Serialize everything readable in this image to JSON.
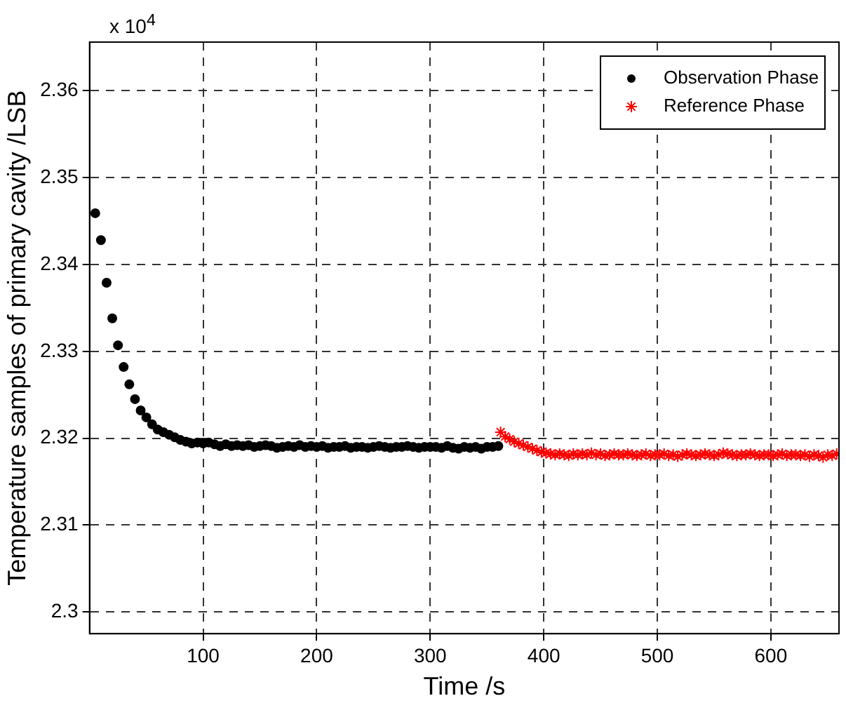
{
  "chart_data": {
    "type": "scatter",
    "xlabel": "Time /s",
    "ylabel": "Temperature samples of primary cavity /LSB",
    "annotations": [
      "x 10$^{4}$"
    ],
    "xlim": [
      0,
      660
    ],
    "xticks": [
      100,
      200,
      300,
      400,
      500,
      600
    ],
    "ylim": [
      2.2975,
      2.3656
    ],
    "yticks": [
      2.3,
      2.31,
      2.32,
      2.33,
      2.34,
      2.35,
      2.36
    ],
    "grid": true,
    "legend": "top right",
    "series": [
      {
        "name": "Observation Phase",
        "color": "#000000",
        "marker": "circle",
        "x": [
          5,
          10,
          15,
          20,
          25,
          30,
          35,
          40,
          45,
          50,
          55,
          60,
          65,
          70,
          75,
          80,
          85,
          90,
          95,
          100,
          105,
          110,
          115,
          120,
          125,
          130,
          135,
          140,
          145,
          150,
          155,
          160,
          165,
          170,
          175,
          180,
          185,
          190,
          195,
          200,
          205,
          210,
          215,
          220,
          225,
          230,
          235,
          240,
          245,
          250,
          255,
          260,
          265,
          270,
          275,
          280,
          285,
          290,
          295,
          300,
          305,
          310,
          315,
          320,
          325,
          330,
          335,
          340,
          345,
          350,
          355,
          360
        ],
        "values": [
          2.3459,
          2.3428,
          2.3379,
          2.3338,
          2.3307,
          2.3282,
          2.3262,
          2.3245,
          2.3232,
          2.3224,
          2.3216,
          2.321,
          2.3207,
          2.3204,
          2.3201,
          2.3198,
          2.3196,
          2.3194,
          2.3195,
          2.3194,
          2.3195,
          2.3193,
          2.3191,
          2.3193,
          2.3191,
          2.3192,
          2.3191,
          2.3192,
          2.319,
          2.3191,
          2.3192,
          2.3191,
          2.3189,
          2.319,
          2.3191,
          2.319,
          2.3192,
          2.319,
          2.3191,
          2.319,
          2.3191,
          2.3189,
          2.319,
          2.319,
          2.3191,
          2.3189,
          2.319,
          2.319,
          2.3189,
          2.319,
          2.3191,
          2.319,
          2.3189,
          2.319,
          2.319,
          2.3191,
          2.319,
          2.3189,
          2.319,
          2.319,
          2.319,
          2.3189,
          2.3191,
          2.3189,
          2.3188,
          2.319,
          2.3189,
          2.319,
          2.3188,
          2.319,
          2.319,
          2.3191
        ]
      },
      {
        "name": "Reference Phase",
        "color": "#ff0000",
        "marker": "cross",
        "x": [
          362,
          366,
          370,
          374,
          378,
          382,
          386,
          390,
          394,
          398,
          402,
          406,
          410,
          414,
          418,
          422,
          426,
          430,
          434,
          438,
          442,
          446,
          450,
          454,
          458,
          462,
          466,
          470,
          474,
          478,
          482,
          486,
          490,
          494,
          498,
          502,
          506,
          510,
          514,
          518,
          522,
          526,
          530,
          534,
          538,
          542,
          546,
          550,
          554,
          558,
          562,
          566,
          570,
          574,
          578,
          582,
          586,
          590,
          594,
          598,
          602,
          606,
          610,
          614,
          618,
          622,
          626,
          630,
          634,
          638,
          642,
          646,
          650,
          654,
          658
        ],
        "values": [
          2.3207,
          2.3202,
          2.3199,
          2.3196,
          2.3194,
          2.3192,
          2.319,
          2.3188,
          2.3186,
          2.3184,
          2.3183,
          2.3182,
          2.3181,
          2.3182,
          2.3181,
          2.318,
          2.3182,
          2.3181,
          2.3182,
          2.3181,
          2.3183,
          2.3181,
          2.3182,
          2.318,
          2.3181,
          2.3182,
          2.3181,
          2.3181,
          2.3182,
          2.3181,
          2.318,
          2.3181,
          2.3182,
          2.318,
          2.3181,
          2.3181,
          2.3182,
          2.318,
          2.3181,
          2.3179,
          2.3181,
          2.3182,
          2.3181,
          2.318,
          2.3181,
          2.3182,
          2.3181,
          2.318,
          2.3181,
          2.3183,
          2.3182,
          2.3181,
          2.318,
          2.3181,
          2.3181,
          2.3182,
          2.3181,
          2.318,
          2.3181,
          2.3181,
          2.318,
          2.3181,
          2.3182,
          2.318,
          2.3181,
          2.3181,
          2.318,
          2.3181,
          2.3179,
          2.3181,
          2.318,
          2.3178,
          2.3181,
          2.318,
          2.3182
        ]
      }
    ]
  }
}
